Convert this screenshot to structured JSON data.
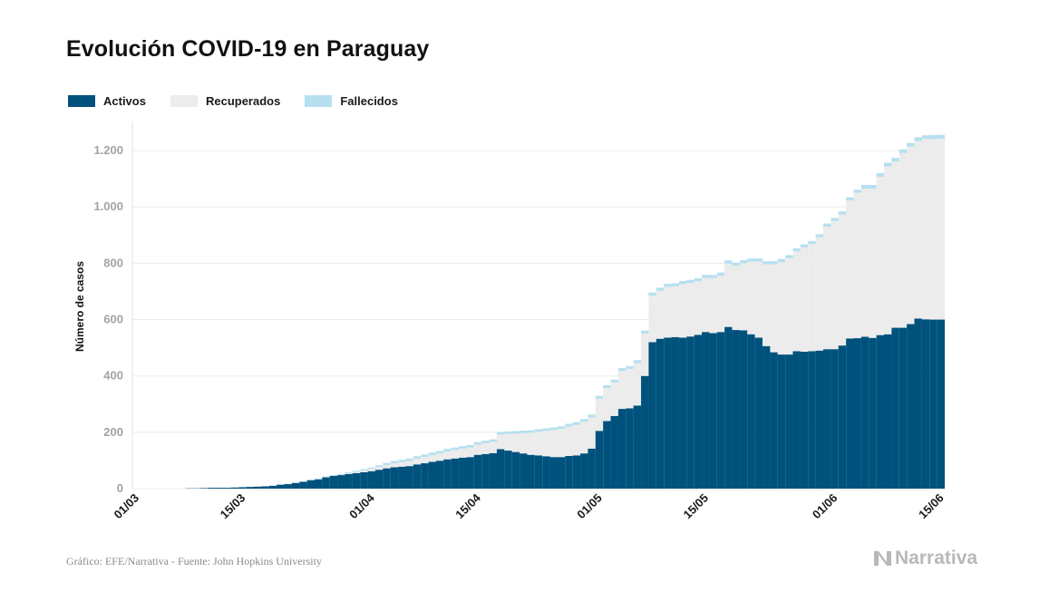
{
  "title": "Evolución COVID-19 en Paraguay",
  "source": "Gráfico: EFE/Narrativa - Fuente: John Hopkins University",
  "brand": "Narrativa",
  "chart_data": {
    "type": "bar",
    "stacked": true,
    "ylabel": "Número de casos",
    "ylim": [
      0,
      1300
    ],
    "yticks": [
      0,
      200,
      400,
      600,
      800,
      1000,
      1200
    ],
    "ytick_labels": [
      "0",
      "200",
      "400",
      "600",
      "800",
      "1.000",
      "1.200"
    ],
    "grid": true,
    "legend_position": "top-left",
    "x_start": "2020-03-01",
    "x_end": "2020-06-16",
    "xtick_labels": [
      "01/03",
      "15/03",
      "01/04",
      "15/04",
      "01/05",
      "15/05",
      "01/06",
      "15/06"
    ],
    "xtick_dates": [
      "2020-03-01",
      "2020-03-15",
      "2020-04-01",
      "2020-04-15",
      "2020-05-01",
      "2020-05-15",
      "2020-06-01",
      "2020-06-15"
    ],
    "dates": [
      "2020-03-08",
      "2020-03-09",
      "2020-03-10",
      "2020-03-11",
      "2020-03-12",
      "2020-03-13",
      "2020-03-14",
      "2020-03-15",
      "2020-03-16",
      "2020-03-17",
      "2020-03-18",
      "2020-03-19",
      "2020-03-20",
      "2020-03-21",
      "2020-03-22",
      "2020-03-23",
      "2020-03-24",
      "2020-03-25",
      "2020-03-26",
      "2020-03-27",
      "2020-03-28",
      "2020-03-29",
      "2020-03-30",
      "2020-03-31",
      "2020-04-01",
      "2020-04-02",
      "2020-04-03",
      "2020-04-04",
      "2020-04-05",
      "2020-04-06",
      "2020-04-07",
      "2020-04-08",
      "2020-04-09",
      "2020-04-10",
      "2020-04-11",
      "2020-04-12",
      "2020-04-13",
      "2020-04-14",
      "2020-04-15",
      "2020-04-16",
      "2020-04-17",
      "2020-04-18",
      "2020-04-19",
      "2020-04-20",
      "2020-04-21",
      "2020-04-22",
      "2020-04-23",
      "2020-04-24",
      "2020-04-25",
      "2020-04-26",
      "2020-04-27",
      "2020-04-28",
      "2020-04-29",
      "2020-04-30",
      "2020-05-01",
      "2020-05-02",
      "2020-05-03",
      "2020-05-04",
      "2020-05-05",
      "2020-05-06",
      "2020-05-07",
      "2020-05-08",
      "2020-05-09",
      "2020-05-10",
      "2020-05-11",
      "2020-05-12",
      "2020-05-13",
      "2020-05-14",
      "2020-05-15",
      "2020-05-16",
      "2020-05-17",
      "2020-05-18",
      "2020-05-19",
      "2020-05-20",
      "2020-05-21",
      "2020-05-22",
      "2020-05-23",
      "2020-05-24",
      "2020-05-25",
      "2020-05-26",
      "2020-05-27",
      "2020-05-28",
      "2020-05-29",
      "2020-05-30",
      "2020-05-31",
      "2020-06-01",
      "2020-06-02",
      "2020-06-03",
      "2020-06-04",
      "2020-06-05",
      "2020-06-06",
      "2020-06-07",
      "2020-06-08",
      "2020-06-09",
      "2020-06-10",
      "2020-06-11",
      "2020-06-12",
      "2020-06-13",
      "2020-06-14",
      "2020-06-15"
    ],
    "series": [
      {
        "name": "Activos",
        "color": "#00527d",
        "values": [
          1,
          1,
          2,
          3,
          3,
          3,
          4,
          5,
          6,
          7,
          8,
          10,
          14,
          16,
          20,
          24,
          30,
          33,
          40,
          45,
          48,
          52,
          55,
          58,
          62,
          67,
          72,
          76,
          78,
          80,
          86,
          90,
          95,
          99,
          104,
          107,
          110,
          112,
          120,
          123,
          126,
          140,
          135,
          130,
          125,
          120,
          118,
          115,
          112,
          112,
          116,
          118,
          125,
          142,
          205,
          240,
          258,
          283,
          285,
          295,
          400,
          520,
          532,
          536,
          538,
          536,
          540,
          546,
          556,
          552,
          556,
          574,
          563,
          562,
          548,
          536,
          506,
          484,
          476,
          476,
          488,
          486,
          488,
          490,
          495,
          495,
          508,
          533,
          534,
          539,
          535,
          545,
          548,
          571,
          571,
          584,
          604,
          601,
          600,
          600
        ]
      },
      {
        "name": "Recuperados",
        "color": "#ececec",
        "values": [
          0,
          0,
          0,
          0,
          0,
          0,
          0,
          0,
          0,
          0,
          0,
          0,
          0,
          0,
          0,
          0,
          0,
          0,
          0,
          0,
          0,
          2,
          4,
          6,
          8,
          10,
          12,
          14,
          16,
          18,
          20,
          22,
          24,
          26,
          28,
          30,
          32,
          34,
          36,
          38,
          40,
          52,
          59,
          65,
          72,
          78,
          84,
          90,
          96,
          100,
          104,
          108,
          112,
          111,
          114,
          117,
          119,
          135,
          140,
          150,
          150,
          165,
          170,
          180,
          180,
          190,
          190,
          190,
          192,
          195,
          200,
          225,
          228,
          238,
          258,
          270,
          290,
          312,
          328,
          342,
          354,
          370,
          380,
          402,
          435,
          455,
          465,
          490,
          516,
          526,
          530,
          562,
          596,
          590,
          620,
          630,
          630,
          640,
          641,
          642
        ]
      },
      {
        "name": "Fallecidos",
        "color": "#b6e0ef",
        "values": [
          0,
          0,
          0,
          0,
          0,
          0,
          0,
          0,
          0,
          0,
          0,
          1,
          1,
          1,
          2,
          2,
          2,
          3,
          3,
          3,
          3,
          4,
          4,
          5,
          5,
          6,
          7,
          8,
          8,
          9,
          9,
          9,
          9,
          9,
          9,
          9,
          9,
          9,
          9,
          9,
          9,
          9,
          9,
          9,
          9,
          9,
          9,
          9,
          9,
          9,
          10,
          10,
          10,
          10,
          10,
          10,
          10,
          10,
          10,
          11,
          11,
          11,
          11,
          11,
          11,
          11,
          11,
          11,
          11,
          11,
          11,
          11,
          11,
          11,
          11,
          11,
          11,
          11,
          11,
          11,
          11,
          11,
          11,
          11,
          11,
          11,
          11,
          11,
          11,
          13,
          13,
          13,
          13,
          13,
          13,
          13,
          13,
          13,
          14,
          14
        ]
      }
    ]
  }
}
